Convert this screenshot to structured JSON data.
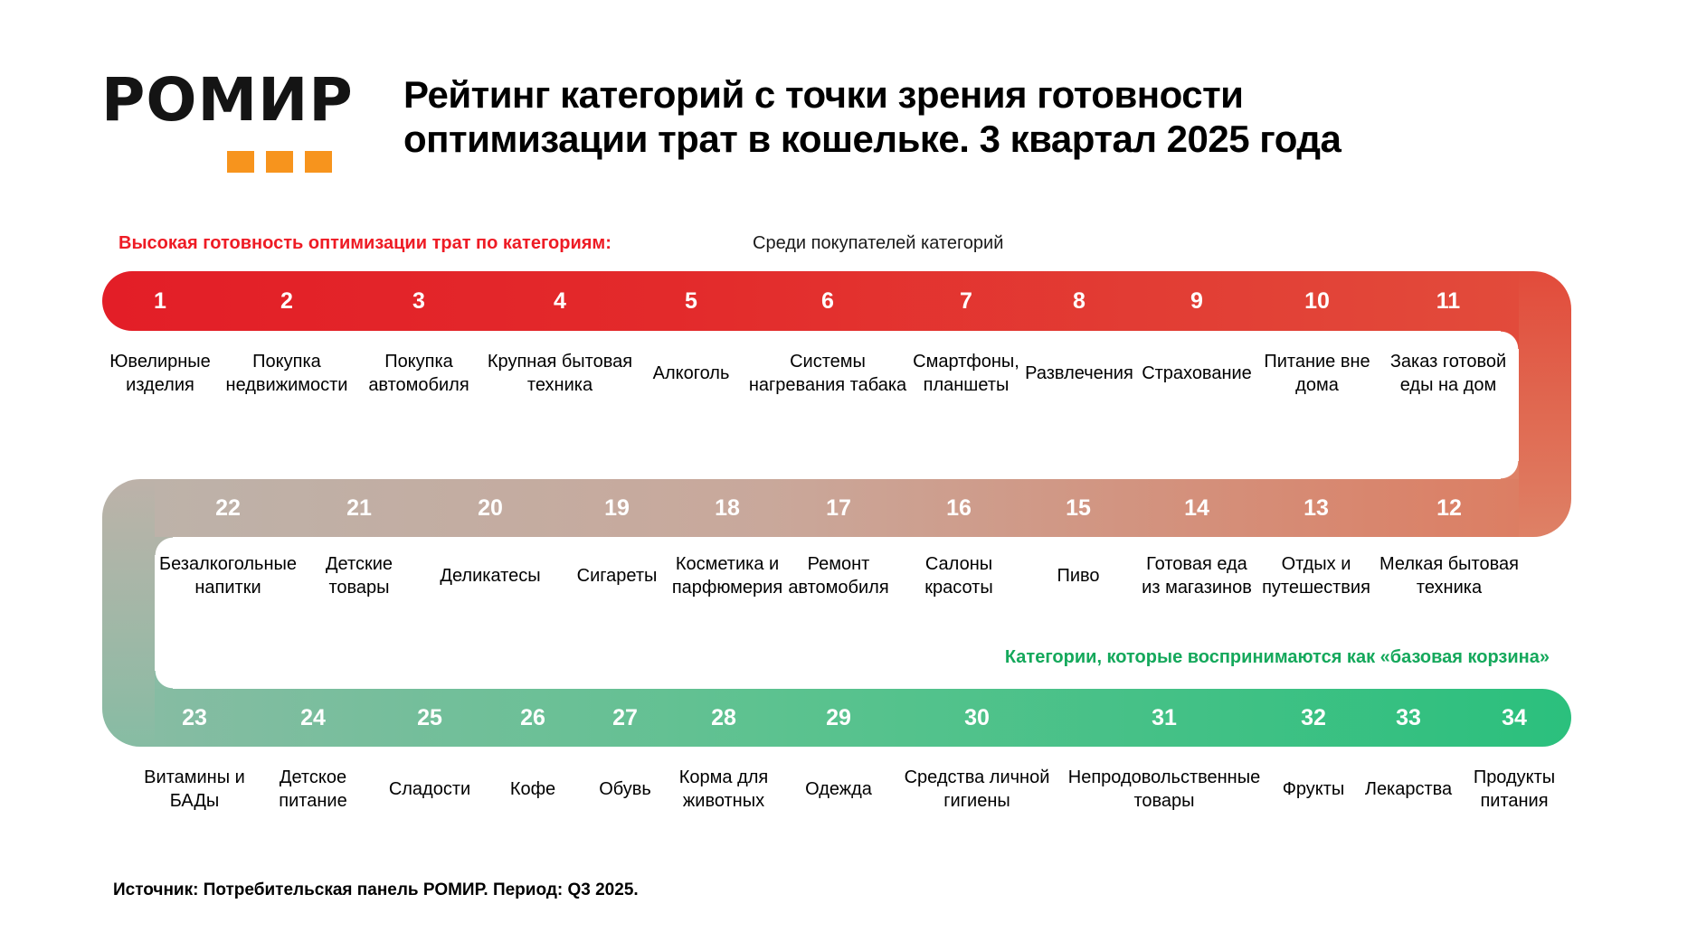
{
  "logo": {
    "text": "РОМИР",
    "accent_color": "#F7941D"
  },
  "title": {
    "line1": "Рейтинг категорий с точки зрения готовности",
    "line2": "оптимизации трат в кошельке. 3 квартал 2025 года"
  },
  "labels": {
    "high_readiness": "Высокая готовность оптимизации трат по категориям:",
    "among_buyers": "Среди покупателей категорий",
    "basic_basket": "Категории, которые воспринимаются как «базовая корзина»"
  },
  "source": "Источник: Потребительская панель РОМИР. Период: Q3 2025.",
  "colors": {
    "red_start": "#E31E27",
    "red_end": "#E24B3B",
    "salmon": "#DC7E63",
    "taupe": "#BDB2A9",
    "sage": "#86BCA3",
    "emerald": "#2BC07D",
    "label_red": "#EE1B24",
    "label_green": "#14A85B",
    "logo_orange": "#F7941D"
  },
  "rows": [
    {
      "items": [
        {
          "rank": "1",
          "label": "Ювелирные\nизделия"
        },
        {
          "rank": "2",
          "label": "Покупка\nнедвижимости"
        },
        {
          "rank": "3",
          "label": "Покупка\nавтомобиля"
        },
        {
          "rank": "4",
          "label": "Крупная бытовая\nтехника"
        },
        {
          "rank": "5",
          "label": "Алкоголь"
        },
        {
          "rank": "6",
          "label": "Системы\nнагревания табака"
        },
        {
          "rank": "7",
          "label": "Смартфоны,\nпланшеты"
        },
        {
          "rank": "8",
          "label": "Развлечения"
        },
        {
          "rank": "9",
          "label": "Страхование"
        },
        {
          "rank": "10",
          "label": "Питание вне\nдома"
        },
        {
          "rank": "11",
          "label": "Заказ готовой\nеды на дом"
        }
      ]
    },
    {
      "items": [
        {
          "rank": "22",
          "label": "Безалкогольные\nнапитки"
        },
        {
          "rank": "21",
          "label": "Детские\nтовары"
        },
        {
          "rank": "20",
          "label": "Деликатесы"
        },
        {
          "rank": "19",
          "label": "Сигареты"
        },
        {
          "rank": "18",
          "label": "Косметика и\nпарфюмерия"
        },
        {
          "rank": "17",
          "label": "Ремонт\nавтомобиля"
        },
        {
          "rank": "16",
          "label": "Салоны\nкрасоты"
        },
        {
          "rank": "15",
          "label": "Пиво"
        },
        {
          "rank": "14",
          "label": "Готовая еда\nиз магазинов"
        },
        {
          "rank": "13",
          "label": "Отдых и\nпутешествия"
        },
        {
          "rank": "12",
          "label": "Мелкая бытовая\nтехника"
        }
      ]
    },
    {
      "items": [
        {
          "rank": "23",
          "label": "Витамины и\nБАДы"
        },
        {
          "rank": "24",
          "label": "Детское\nпитание"
        },
        {
          "rank": "25",
          "label": "Сладости"
        },
        {
          "rank": "26",
          "label": "Кофе"
        },
        {
          "rank": "27",
          "label": "Обувь"
        },
        {
          "rank": "28",
          "label": "Корма для\nживотных"
        },
        {
          "rank": "29",
          "label": "Одежда"
        },
        {
          "rank": "30",
          "label": "Средства личной\nгигиены"
        },
        {
          "rank": "31",
          "label": "Непродовольственные\nтовары"
        },
        {
          "rank": "32",
          "label": "Фрукты"
        },
        {
          "rank": "33",
          "label": "Лекарства"
        },
        {
          "rank": "34",
          "label": "Продукты\nпитания"
        }
      ]
    }
  ],
  "chart_data": {
    "type": "table",
    "title": "Рейтинг категорий с точки зрения готовности оптимизации трат в кошельке. 3 квартал 2025 года",
    "subtitle": "Среди покупателей категорий",
    "source": "Источник: Потребительская панель РОМИР. Период: Q3 2025.",
    "segments": [
      {
        "name": "Высокая готовность оптимизации трат по категориям",
        "ranks": "1–11",
        "color": "#E31E27"
      },
      {
        "name": "Категории, которые воспринимаются как «базовая корзина»",
        "ranks": "23–34",
        "color": "#2BC07D"
      }
    ],
    "ranking": [
      {
        "rank": 1,
        "category": "Ювелирные изделия"
      },
      {
        "rank": 2,
        "category": "Покупка недвижимости"
      },
      {
        "rank": 3,
        "category": "Покупка автомобиля"
      },
      {
        "rank": 4,
        "category": "Крупная бытовая техника"
      },
      {
        "rank": 5,
        "category": "Алкоголь"
      },
      {
        "rank": 6,
        "category": "Системы нагревания табака"
      },
      {
        "rank": 7,
        "category": "Смартфоны, планшеты"
      },
      {
        "rank": 8,
        "category": "Развлечения"
      },
      {
        "rank": 9,
        "category": "Страхование"
      },
      {
        "rank": 10,
        "category": "Питание вне дома"
      },
      {
        "rank": 11,
        "category": "Заказ готовой еды на дом"
      },
      {
        "rank": 12,
        "category": "Мелкая бытовая техника"
      },
      {
        "rank": 13,
        "category": "Отдых и путешествия"
      },
      {
        "rank": 14,
        "category": "Готовая еда из магазинов"
      },
      {
        "rank": 15,
        "category": "Пиво"
      },
      {
        "rank": 16,
        "category": "Салоны красоты"
      },
      {
        "rank": 17,
        "category": "Ремонт автомобиля"
      },
      {
        "rank": 18,
        "category": "Косметика и парфюмерия"
      },
      {
        "rank": 19,
        "category": "Сигареты"
      },
      {
        "rank": 20,
        "category": "Деликатесы"
      },
      {
        "rank": 21,
        "category": "Детские товары"
      },
      {
        "rank": 22,
        "category": "Безалкогольные напитки"
      },
      {
        "rank": 23,
        "category": "Витамины и БАДы"
      },
      {
        "rank": 24,
        "category": "Детское питание"
      },
      {
        "rank": 25,
        "category": "Сладости"
      },
      {
        "rank": 26,
        "category": "Кофе"
      },
      {
        "rank": 27,
        "category": "Обувь"
      },
      {
        "rank": 28,
        "category": "Корма для животных"
      },
      {
        "rank": 29,
        "category": "Одежда"
      },
      {
        "rank": 30,
        "category": "Средства личной гигиены"
      },
      {
        "rank": 31,
        "category": "Непродовольственные товары"
      },
      {
        "rank": 32,
        "category": "Фрукты"
      },
      {
        "rank": 33,
        "category": "Лекарства"
      },
      {
        "rank": 34,
        "category": "Продукты питания"
      }
    ]
  }
}
